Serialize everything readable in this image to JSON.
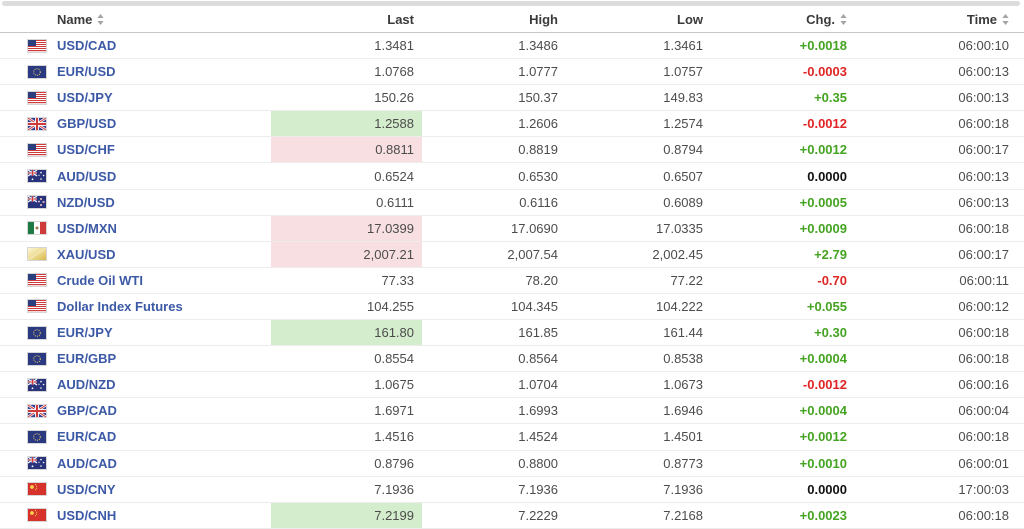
{
  "colors": {
    "up_green": "#44a321",
    "down_red": "#e02525",
    "flat_black": "#111111",
    "name_blue": "#3c59a6",
    "highlight_green": "#d4edcc",
    "highlight_pink": "#f8e0e2"
  },
  "table": {
    "columns": [
      {
        "label": "Name",
        "sortable": true,
        "align": "left"
      },
      {
        "label": "Last",
        "sortable": false,
        "align": "right"
      },
      {
        "label": "High",
        "sortable": false,
        "align": "right"
      },
      {
        "label": "Low",
        "sortable": false,
        "align": "right"
      },
      {
        "label": "Chg.",
        "sortable": true,
        "align": "right"
      },
      {
        "label": "Time",
        "sortable": true,
        "align": "right"
      }
    ],
    "rows": [
      {
        "name": "USD/CAD",
        "flag": "us-flag-icon",
        "last": "1.3481",
        "high": "1.3486",
        "low": "1.3461",
        "chg": "+0.0018",
        "chg_dir": "up",
        "time": "06:00:10",
        "last_highlight": "none"
      },
      {
        "name": "EUR/USD",
        "flag": "eu-flag-icon",
        "last": "1.0768",
        "high": "1.0777",
        "low": "1.0757",
        "chg": "-0.0003",
        "chg_dir": "down",
        "time": "06:00:13",
        "last_highlight": "none"
      },
      {
        "name": "USD/JPY",
        "flag": "us-flag-icon",
        "last": "150.26",
        "high": "150.37",
        "low": "149.83",
        "chg": "+0.35",
        "chg_dir": "up",
        "time": "06:00:13",
        "last_highlight": "none"
      },
      {
        "name": "GBP/USD",
        "flag": "gb-flag-icon",
        "last": "1.2588",
        "high": "1.2606",
        "low": "1.2574",
        "chg": "-0.0012",
        "chg_dir": "down",
        "time": "06:00:18",
        "last_highlight": "green"
      },
      {
        "name": "USD/CHF",
        "flag": "us-flag-icon",
        "last": "0.8811",
        "high": "0.8819",
        "low": "0.8794",
        "chg": "+0.0012",
        "chg_dir": "up",
        "time": "06:00:17",
        "last_highlight": "pink"
      },
      {
        "name": "AUD/USD",
        "flag": "au-flag-icon",
        "last": "0.6524",
        "high": "0.6530",
        "low": "0.6507",
        "chg": "0.0000",
        "chg_dir": "flat",
        "time": "06:00:13",
        "last_highlight": "none"
      },
      {
        "name": "NZD/USD",
        "flag": "nz-flag-icon",
        "last": "0.6111",
        "high": "0.6116",
        "low": "0.6089",
        "chg": "+0.0005",
        "chg_dir": "up",
        "time": "06:00:13",
        "last_highlight": "none"
      },
      {
        "name": "USD/MXN",
        "flag": "mx-flag-icon",
        "last": "17.0399",
        "high": "17.0690",
        "low": "17.0335",
        "chg": "+0.0009",
        "chg_dir": "up",
        "time": "06:00:18",
        "last_highlight": "pink"
      },
      {
        "name": "XAU/USD",
        "flag": "gold-bar-icon",
        "last": "2,007.21",
        "high": "2,007.54",
        "low": "2,002.45",
        "chg": "+2.79",
        "chg_dir": "up",
        "time": "06:00:17",
        "last_highlight": "pink"
      },
      {
        "name": "Crude Oil WTI",
        "flag": "us-flag-icon",
        "last": "77.33",
        "high": "78.20",
        "low": "77.22",
        "chg": "-0.70",
        "chg_dir": "down",
        "time": "06:00:11",
        "last_highlight": "none"
      },
      {
        "name": "Dollar Index Futures",
        "flag": "us-flag-icon",
        "last": "104.255",
        "high": "104.345",
        "low": "104.222",
        "chg": "+0.055",
        "chg_dir": "up",
        "time": "06:00:12",
        "last_highlight": "none"
      },
      {
        "name": "EUR/JPY",
        "flag": "eu-flag-icon",
        "last": "161.80",
        "high": "161.85",
        "low": "161.44",
        "chg": "+0.30",
        "chg_dir": "up",
        "time": "06:00:18",
        "last_highlight": "green"
      },
      {
        "name": "EUR/GBP",
        "flag": "eu-flag-icon",
        "last": "0.8554",
        "high": "0.8564",
        "low": "0.8538",
        "chg": "+0.0004",
        "chg_dir": "up",
        "time": "06:00:18",
        "last_highlight": "none"
      },
      {
        "name": "AUD/NZD",
        "flag": "au-flag-icon",
        "last": "1.0675",
        "high": "1.0704",
        "low": "1.0673",
        "chg": "-0.0012",
        "chg_dir": "down",
        "time": "06:00:16",
        "last_highlight": "none"
      },
      {
        "name": "GBP/CAD",
        "flag": "gb-flag-icon",
        "last": "1.6971",
        "high": "1.6993",
        "low": "1.6946",
        "chg": "+0.0004",
        "chg_dir": "up",
        "time": "06:00:04",
        "last_highlight": "none"
      },
      {
        "name": "EUR/CAD",
        "flag": "eu-flag-icon",
        "last": "1.4516",
        "high": "1.4524",
        "low": "1.4501",
        "chg": "+0.0012",
        "chg_dir": "up",
        "time": "06:00:18",
        "last_highlight": "none"
      },
      {
        "name": "AUD/CAD",
        "flag": "au-flag-icon",
        "last": "0.8796",
        "high": "0.8800",
        "low": "0.8773",
        "chg": "+0.0010",
        "chg_dir": "up",
        "time": "06:00:01",
        "last_highlight": "none"
      },
      {
        "name": "USD/CNY",
        "flag": "cn-flag-icon",
        "last": "7.1936",
        "high": "7.1936",
        "low": "7.1936",
        "chg": "0.0000",
        "chg_dir": "flat",
        "time": "17:00:03",
        "last_highlight": "none"
      },
      {
        "name": "USD/CNH",
        "flag": "cn-flag-icon",
        "last": "7.2199",
        "high": "7.2229",
        "low": "7.2168",
        "chg": "+0.0023",
        "chg_dir": "up",
        "time": "06:00:18",
        "last_highlight": "green"
      }
    ]
  }
}
